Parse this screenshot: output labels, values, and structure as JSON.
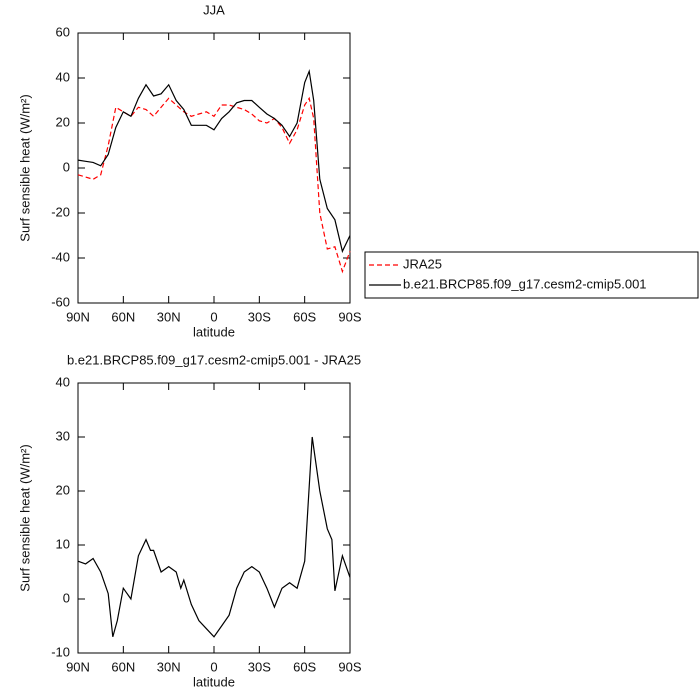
{
  "chart_data": [
    {
      "type": "line",
      "title": "JJA",
      "xlabel": "latitude",
      "ylabel": "Surf sensible heat (W/m²)",
      "x": [
        90,
        85,
        80,
        75,
        70,
        65,
        60,
        55,
        50,
        45,
        40,
        35,
        30,
        25,
        20,
        15,
        10,
        5,
        0,
        -5,
        -10,
        -15,
        -20,
        -25,
        -30,
        -35,
        -40,
        -45,
        -50,
        -55,
        -60,
        -63,
        -66,
        -70,
        -75,
        -80,
        -85,
        -90
      ],
      "series": [
        {
          "name": "JRA25",
          "color": "#ff0000",
          "dash": true,
          "values": [
            -3,
            -4,
            -5,
            -3,
            10,
            27,
            25,
            23,
            27,
            26,
            23,
            27,
            31,
            28,
            25,
            23,
            24,
            25,
            23,
            28,
            28,
            27,
            26,
            24,
            21,
            20,
            22,
            18,
            11,
            17,
            28,
            31,
            22,
            -20,
            -36,
            -35,
            -46,
            -37
          ]
        },
        {
          "name": "b.e21.BRCP85.f09_g17.cesm2-cmip5.001",
          "color": "#000000",
          "dash": false,
          "values": [
            3.5,
            3,
            2.5,
            1,
            6,
            18,
            25,
            23,
            31,
            37,
            32,
            33,
            37,
            30,
            26,
            19,
            19,
            19,
            17,
            22,
            25,
            29,
            30,
            30,
            27,
            24,
            22,
            19,
            14,
            20,
            38,
            43,
            30,
            -5,
            -18,
            -23,
            -37,
            -30
          ]
        }
      ],
      "xlim": [
        90,
        -90
      ],
      "xticks": [
        {
          "value": 90,
          "label": "90N"
        },
        {
          "value": 60,
          "label": "60N"
        },
        {
          "value": 30,
          "label": "30N"
        },
        0,
        {
          "value": -30,
          "label": "30S"
        },
        {
          "value": -60,
          "label": "60S"
        },
        {
          "value": -90,
          "label": "90S"
        }
      ],
      "ylim": [
        -60,
        60
      ],
      "yticks": [
        -60,
        -40,
        -20,
        0,
        20,
        40,
        60
      ],
      "legend": "right"
    },
    {
      "type": "line",
      "title": "b.e21.BRCP85.f09_g17.cesm2-cmip5.001 - JRA25",
      "xlabel": "latitude",
      "ylabel": "Surf sensible heat (W/m²)",
      "x": [
        90,
        85,
        80,
        75,
        70,
        67,
        64,
        60,
        55,
        50,
        45,
        42,
        40,
        35,
        30,
        25,
        22,
        20,
        15,
        10,
        5,
        0,
        -5,
        -10,
        -15,
        -20,
        -25,
        -30,
        -35,
        -40,
        -45,
        -50,
        -55,
        -60,
        -65,
        -70,
        -75,
        -78,
        -80,
        -85,
        -90
      ],
      "values": [
        7,
        6.5,
        7.5,
        5,
        1,
        -7,
        -4,
        2,
        0,
        8,
        11,
        9,
        9,
        5,
        6,
        5,
        2,
        3.5,
        -1,
        -4,
        -5.5,
        -7,
        -5,
        -3,
        2,
        5,
        6,
        5,
        2,
        -1.5,
        2,
        3,
        2,
        7,
        30,
        20,
        13,
        11,
        1.5,
        8,
        4
      ],
      "color": "#000000",
      "xlim": [
        90,
        -90
      ],
      "xticks": [
        {
          "value": 90,
          "label": "90N"
        },
        {
          "value": 60,
          "label": "60N"
        },
        {
          "value": 30,
          "label": "30N"
        },
        0,
        {
          "value": -30,
          "label": "30S"
        },
        {
          "value": -60,
          "label": "60S"
        },
        {
          "value": -90,
          "label": "90S"
        }
      ],
      "ylim": [
        -10,
        40
      ],
      "yticks": [
        -10,
        0,
        10,
        20,
        30,
        40
      ]
    }
  ]
}
